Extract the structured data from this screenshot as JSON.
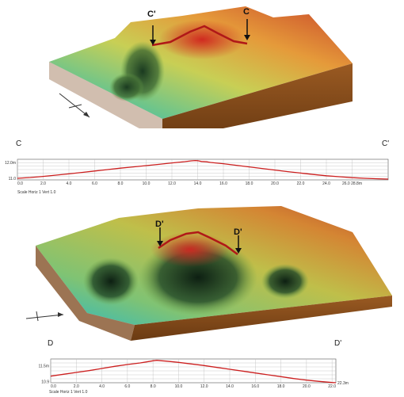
{
  "top": {
    "callouts": [
      "C'",
      "C"
    ],
    "end_left": "C",
    "end_right": "C'",
    "caption": "Scale Horiz 1 Vert 1.0",
    "chart_data": {
      "type": "line",
      "x": [
        0.0,
        1.0,
        2.0,
        3.0,
        4.0,
        5.0,
        6.0,
        7.0,
        8.0,
        9.0,
        10.0,
        11.0,
        12.0,
        13.0,
        13.5,
        13.8,
        14.0,
        14.3,
        14.7,
        15.0,
        16.0,
        17.0,
        18.0,
        19.0,
        20.0,
        21.0,
        22.0,
        23.0,
        24.0,
        25.0,
        26.0,
        27.0,
        28.0,
        28.8
      ],
      "y": [
        11.0,
        11.05,
        11.12,
        11.2,
        11.28,
        11.37,
        11.46,
        11.55,
        11.64,
        11.72,
        11.8,
        11.88,
        11.97,
        12.05,
        12.1,
        12.12,
        12.11,
        12.06,
        12.04,
        12.0,
        11.92,
        11.82,
        11.72,
        11.62,
        11.52,
        11.42,
        11.33,
        11.24,
        11.16,
        11.1,
        11.04,
        11.0,
        10.97,
        10.95
      ],
      "xlim": [
        0.0,
        28.8
      ],
      "ylim": [
        10.9,
        12.2
      ],
      "xticks": [
        0.0,
        2.0,
        4.0,
        6.0,
        8.0,
        10.0,
        12.0,
        14.0,
        16.0,
        18.0,
        20.0,
        22.0,
        24.0,
        26.0
      ],
      "xtick_labels": [
        "0.0",
        "2.0",
        "4.0",
        "6.0",
        "8.0",
        "10.0",
        "12.0",
        "14.0",
        "16.0",
        "18.0",
        "20.0",
        "22.0",
        "24.0",
        "26.0 28.8m"
      ],
      "yticks": [
        11.0,
        12.0
      ],
      "ytick_labels": [
        "11.0",
        "12.0m"
      ],
      "grid": true,
      "line_color": "#cc1f1f"
    }
  },
  "bottom": {
    "callouts": [
      "D'",
      "D'"
    ],
    "end_left": "D",
    "end_right": "D'",
    "caption": "Scale Horiz 1 Vert 1.0",
    "chart_data": {
      "type": "line",
      "x": [
        0.0,
        1.0,
        2.0,
        3.0,
        4.0,
        5.0,
        6.0,
        7.0,
        7.5,
        8.0,
        8.3,
        8.7,
        9.0,
        10.0,
        11.0,
        12.0,
        13.0,
        14.0,
        15.0,
        16.0,
        17.0,
        18.0,
        19.0,
        20.0,
        21.0,
        22.0,
        22.3
      ],
      "y": [
        11.1,
        11.17,
        11.24,
        11.31,
        11.39,
        11.47,
        11.54,
        11.6,
        11.64,
        11.68,
        11.7,
        11.68,
        11.67,
        11.62,
        11.56,
        11.5,
        11.43,
        11.36,
        11.29,
        11.22,
        11.15,
        11.08,
        11.01,
        10.95,
        10.9,
        10.86,
        10.85
      ],
      "xlim": [
        0.0,
        22.3
      ],
      "ylim": [
        10.85,
        11.75
      ],
      "xticks": [
        0.0,
        2.0,
        4.0,
        6.0,
        8.0,
        10.0,
        12.0,
        14.0,
        16.0,
        18.0,
        20.0,
        22.0
      ],
      "xtick_labels": [
        "0.0",
        "2.0",
        "4.0",
        "6.0",
        "8.0",
        "10.0",
        "12.0",
        "14.0",
        "16.0",
        "18.0",
        "20.0",
        "22.0"
      ],
      "end_label": "22.3m",
      "yticks": [
        10.9,
        11.5
      ],
      "ytick_labels": [
        "10.9",
        "11.5m"
      ],
      "grid": true,
      "line_color": "#cc1f1f"
    }
  }
}
